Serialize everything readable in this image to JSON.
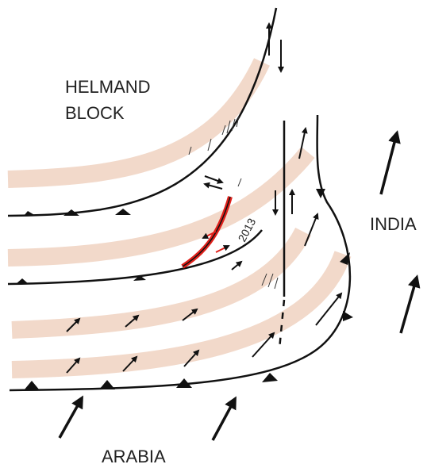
{
  "labels": {
    "helmand_block": [
      "HELMAND",
      "BLOCK"
    ],
    "india": "INDIA",
    "arabia": "ARABIA",
    "year": "2013"
  }
}
